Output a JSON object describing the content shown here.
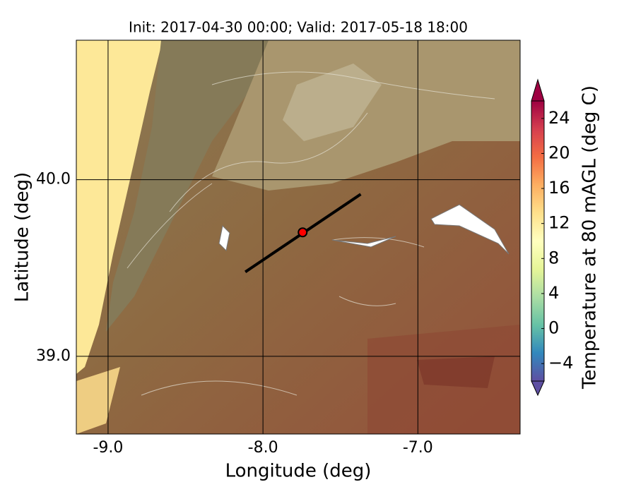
{
  "map": {
    "title": "Init: 2017-04-30 00:00; Valid: 2017-05-18 18:00",
    "xlabel": "Longitude (deg)",
    "ylabel": "Latitude (deg)",
    "xlim": [
      -9.205,
      -6.34
    ],
    "ylim": [
      38.56,
      40.79
    ],
    "xticks": [
      {
        "value": -9,
        "label": "-9.0"
      },
      {
        "value": -8,
        "label": "-8.0"
      },
      {
        "value": -7,
        "label": "-7.0"
      }
    ],
    "yticks": [
      {
        "value": 39,
        "label": "39.0"
      },
      {
        "value": 40,
        "label": "40.0"
      }
    ],
    "grid": true,
    "transect": {
      "lon": [
        -8.114,
        -7.369
      ],
      "lat": [
        39.478,
        39.918
      ]
    },
    "point": {
      "lon": -7.744,
      "lat": 39.702,
      "color": "#ff0000"
    },
    "colorbar": {
      "label": "Temperature at 80 mAGL (deg C)",
      "clim": [
        -6,
        26
      ],
      "ticks": [
        {
          "value": -4,
          "label": "−4"
        },
        0,
        4,
        8,
        12,
        16,
        20,
        24
      ],
      "colors": [
        "#5e4fa2",
        "#3288bd",
        "#66c2a5",
        "#abdda4",
        "#e6f598",
        "#ffffbf",
        "#fee08b",
        "#fdae61",
        "#f46d43",
        "#d53e4f",
        "#9e0142"
      ]
    }
  }
}
